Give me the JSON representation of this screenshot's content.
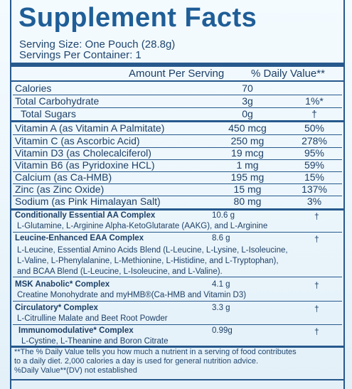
{
  "title": "Supplement Facts",
  "serving": {
    "size": "Serving Size: One Pouch (28.8g)",
    "per_container": "Servings Per Container: 1"
  },
  "header": {
    "amount": "Amount Per Serving",
    "dv": "% Daily Value**"
  },
  "nutrients": [
    {
      "name": "Calories",
      "amount": "70",
      "dv": ""
    },
    {
      "name": "Total Carbohydrate",
      "amount": "3g",
      "dv": "1%*"
    },
    {
      "name": "Total Sugars",
      "amount": "0g",
      "dv": "†"
    },
    {
      "name": "Vitamin A (as Vitamin A Palmitate)",
      "amount": "450 mcg",
      "dv": "50%"
    },
    {
      "name": "Vitamin C (as Ascorbic Acid)",
      "amount": "250 mg",
      "dv": "278%"
    },
    {
      "name": "Vitamin D3 (as Cholecalciferol)",
      "amount": "19 mcg",
      "dv": "95%"
    },
    {
      "name": "Vitamin B6 (as Pyridoxine HCL)",
      "amount": "1 mg",
      "dv": "59%"
    },
    {
      "name": "Calcium (as Ca-HMB)",
      "amount": "195 mg",
      "dv": "15%"
    },
    {
      "name": "Zinc (as Zinc Oxide)",
      "amount": "15 mg",
      "dv": "137%"
    },
    {
      "name": "Sodium (as Pink Himalayan Salt)",
      "amount": "80 mg",
      "dv": "3%"
    }
  ],
  "blends": [
    {
      "name": "Conditionally Essential AA Complex",
      "amount": "10.6 g",
      "dv": "†",
      "desc": [
        "L-Glutamine, L-Arginine Alpha-KetoGlutarate (AAKG), and L-Arginine"
      ]
    },
    {
      "name": "Leucine-Enhanced EAA Complex",
      "amount": "8.6 g",
      "dv": "†",
      "desc": [
        "L-Leucine, Essential Amino Acids Blend (L-Leucine, L-Lysine, L-Isoleucine,",
        "L-Valine, L-Phenylalanine, L-Methionine, L-Histidine, and L-Tryptophan),",
        "and BCAA Blend (L-Leucine, L-Isoleucine, and L-Valine)."
      ]
    },
    {
      "name": "MSK Anabolic* Complex",
      "amount": "4.1 g",
      "dv": "†",
      "desc": [
        "Creatine Monohydrate and myHMB®(Ca-HMB and Vitamin D3)"
      ]
    },
    {
      "name": "Circulatory* Complex",
      "amount": "3.3 g",
      "dv": "†",
      "desc": [
        "L-Citrulline Malate and Beet Root Powder"
      ]
    },
    {
      "name": "Immunomodulative* Complex",
      "amount": "0.99g",
      "dv": "†",
      "desc": [
        "L-Cystine, L-Theanine and Boron Citrate"
      ]
    }
  ],
  "footer": [
    "**The % Daily Value tells you how much a nutrient in a serving of food contributes",
    "to a daily diet. 2,000 calories a day is used for general nutrition advice.",
    "%Daily Value**(DV) not established"
  ]
}
